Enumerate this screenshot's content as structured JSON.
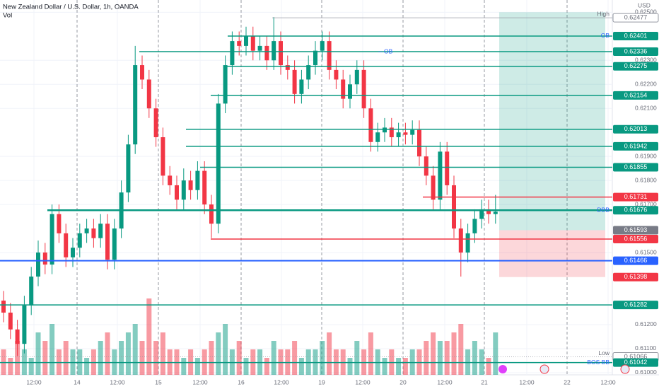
{
  "chart_data": {
    "type": "candlestick",
    "title": "New Zealand Dollar / U.S. Dollar, 1h, OANDA",
    "subtitle": "Vol",
    "currency": "USD",
    "ylim": [
      0.60991,
      0.62551
    ],
    "yticks": [
      {
        "value": 0.625,
        "label": "0.62500"
      },
      {
        "value": 0.623,
        "label": "0.62300"
      },
      {
        "value": 0.622,
        "label": "0.62200"
      },
      {
        "value": 0.621,
        "label": "0.62100"
      },
      {
        "value": 0.619,
        "label": "0.61900"
      },
      {
        "value": 0.618,
        "label": "0.61800"
      },
      {
        "value": 0.617,
        "label": "0.61700"
      },
      {
        "value": 0.615,
        "label": "0.61500"
      },
      {
        "value": 0.612,
        "label": "0.61200"
      },
      {
        "value": 0.611,
        "label": "0.61100"
      },
      {
        "value": 0.61,
        "label": "0.61000"
      }
    ],
    "xticks": [
      "12:00",
      "14",
      "12:00",
      "15",
      "12:00",
      "16",
      "12:00",
      "19",
      "12:00",
      "20",
      "12:00",
      "21",
      "12:00",
      "22",
      "12:00"
    ],
    "up_color": "#089981",
    "down_color": "#f23645",
    "open": [
      0.613,
      0.6125,
      0.6118,
      0.6112,
      0.6128,
      0.614,
      0.615,
      0.6145,
      0.6166,
      0.6158,
      0.6148,
      0.6152,
      0.6158,
      0.616,
      0.6156,
      0.6162,
      0.6147,
      0.616,
      0.6175,
      0.6195,
      0.6228,
      0.6222,
      0.621,
      0.6198,
      0.6182,
      0.6178,
      0.6172,
      0.618,
      0.6176,
      0.6184,
      0.617,
      0.6162,
      0.6212,
      0.6228,
      0.6238,
      0.6236,
      0.624,
      0.6234,
      0.6236,
      0.623,
      0.6238,
      0.6228,
      0.6226,
      0.6216,
      0.6222,
      0.6228,
      0.6234,
      0.6238,
      0.6226,
      0.6222,
      0.6214,
      0.622,
      0.6226,
      0.621,
      0.6196,
      0.62,
      0.6202,
      0.6198,
      0.62,
      0.6199,
      0.6201,
      0.619,
      0.6182,
      0.6172,
      0.6192,
      0.6178,
      0.616,
      0.615,
      0.6158,
      0.6164,
      0.6168,
      0.6166
    ],
    "high": [
      0.6134,
      0.6129,
      0.6122,
      0.6132,
      0.6144,
      0.6155,
      0.6154,
      0.617,
      0.617,
      0.6162,
      0.6156,
      0.6162,
      0.6164,
      0.6164,
      0.6166,
      0.6166,
      0.6164,
      0.618,
      0.6199,
      0.6236,
      0.6232,
      0.6226,
      0.6214,
      0.6202,
      0.6186,
      0.6182,
      0.6185,
      0.6184,
      0.6188,
      0.6188,
      0.6174,
      0.6216,
      0.6232,
      0.6242,
      0.6242,
      0.6244,
      0.6244,
      0.624,
      0.624,
      0.6248,
      0.6242,
      0.6232,
      0.623,
      0.6226,
      0.6232,
      0.6238,
      0.6242,
      0.6242,
      0.623,
      0.6226,
      0.6224,
      0.623,
      0.623,
      0.6214,
      0.6204,
      0.6206,
      0.6206,
      0.6204,
      0.6204,
      0.6205,
      0.6205,
      0.6194,
      0.6186,
      0.6196,
      0.6196,
      0.6182,
      0.6164,
      0.6162,
      0.6168,
      0.6172,
      0.6172,
      0.6174
    ],
    "low": [
      0.6121,
      0.6114,
      0.6107,
      0.6108,
      0.6124,
      0.6136,
      0.6141,
      0.6141,
      0.6154,
      0.6144,
      0.6144,
      0.6148,
      0.6154,
      0.6152,
      0.6152,
      0.6143,
      0.6143,
      0.6156,
      0.6171,
      0.6191,
      0.6218,
      0.6206,
      0.6194,
      0.6178,
      0.6174,
      0.6168,
      0.6168,
      0.6172,
      0.6172,
      0.6166,
      0.6156,
      0.6158,
      0.6208,
      0.6224,
      0.6232,
      0.6232,
      0.623,
      0.623,
      0.6226,
      0.6226,
      0.6224,
      0.6222,
      0.6212,
      0.6212,
      0.6218,
      0.6224,
      0.623,
      0.6222,
      0.6218,
      0.621,
      0.621,
      0.6216,
      0.6206,
      0.6192,
      0.6192,
      0.6196,
      0.6194,
      0.6194,
      0.6195,
      0.6195,
      0.6186,
      0.6178,
      0.6168,
      0.6168,
      0.6174,
      0.6156,
      0.614,
      0.6146,
      0.6154,
      0.616,
      0.6162,
      0.6162
    ],
    "close": [
      0.6125,
      0.6118,
      0.6112,
      0.6128,
      0.614,
      0.615,
      0.6145,
      0.6166,
      0.6158,
      0.6148,
      0.6152,
      0.6158,
      0.616,
      0.6156,
      0.6162,
      0.6147,
      0.616,
      0.6175,
      0.6195,
      0.6228,
      0.6222,
      0.621,
      0.6198,
      0.6182,
      0.6178,
      0.6172,
      0.618,
      0.6176,
      0.6184,
      0.617,
      0.6162,
      0.6212,
      0.6228,
      0.6238,
      0.6236,
      0.624,
      0.6234,
      0.6236,
      0.623,
      0.6238,
      0.6228,
      0.6226,
      0.6216,
      0.6222,
      0.6228,
      0.6234,
      0.6238,
      0.6226,
      0.6222,
      0.6214,
      0.622,
      0.6226,
      0.621,
      0.6196,
      0.62,
      0.6202,
      0.6198,
      0.62,
      0.6199,
      0.6201,
      0.619,
      0.6182,
      0.6172,
      0.6192,
      0.6178,
      0.616,
      0.615,
      0.6158,
      0.6164,
      0.6168,
      0.6166,
      0.6167
    ],
    "volume": [
      3,
      2,
      4,
      3,
      2,
      5,
      4,
      6,
      3,
      4,
      3,
      3,
      2,
      3,
      4,
      5,
      3,
      4,
      5,
      6,
      4,
      9,
      4,
      5,
      3,
      3,
      2,
      3,
      2,
      3,
      4,
      5,
      6,
      3,
      4,
      2,
      3,
      3,
      2,
      4,
      3,
      3,
      4,
      2,
      3,
      3,
      4,
      5,
      3,
      3,
      2,
      4,
      3,
      5,
      3,
      2,
      3,
      2,
      2,
      3,
      3,
      4,
      5,
      4,
      4,
      5,
      6,
      3,
      4,
      3,
      2,
      5
    ],
    "levels": [
      {
        "value": 0.62477,
        "color": "#9598a1",
        "text": "High"
      },
      {
        "value": 0.62401,
        "color": "#089981",
        "text": "OB"
      },
      {
        "value": 0.62336,
        "color": "#089981",
        "text": "-- OB"
      },
      {
        "value": 0.62275,
        "color": "#089981"
      },
      {
        "value": 0.62154,
        "color": "#089981"
      },
      {
        "value": 0.62013,
        "color": "#089981"
      },
      {
        "value": 0.61942,
        "color": "#089981"
      },
      {
        "value": 0.61855,
        "color": "#089981"
      },
      {
        "value": 0.61731,
        "color": "#f23645"
      },
      {
        "value": 0.61676,
        "color": "#089981",
        "text": "DBB"
      },
      {
        "value": 0.61556,
        "color": "#f23645"
      },
      {
        "value": 0.61466,
        "color": "#2962ff"
      },
      {
        "value": 0.61282,
        "color": "#089981"
      },
      {
        "value": 0.61066,
        "color": "#9598a1",
        "text": "Low"
      },
      {
        "value": 0.61042,
        "color": "#089981",
        "text": "BOS BB"
      }
    ],
    "position": {
      "target": 0.625,
      "entry": 0.61593,
      "stop": 0.61398,
      "entry_color": "#787b86",
      "stop_color": "#f23645"
    }
  }
}
